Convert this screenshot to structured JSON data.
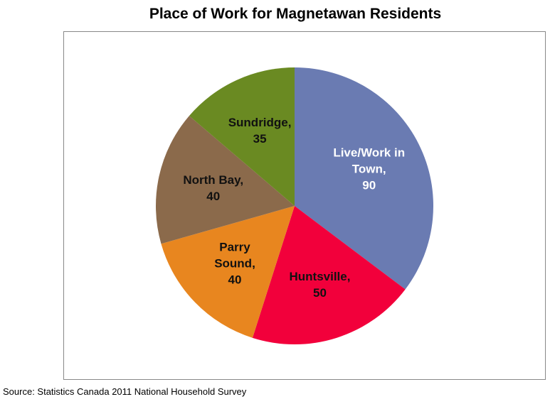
{
  "chart_data": {
    "type": "pie",
    "title": "Place of Work for Magnetawan Residents",
    "categories": [
      "Live/Work in Town,",
      "Huntsville,",
      "Parry Sound,",
      "North Bay,",
      "Sundridge,"
    ],
    "values": [
      90,
      50,
      40,
      40,
      35
    ],
    "colors": [
      "#6a7bb2",
      "#f2003b",
      "#e8861f",
      "#8b6a4b",
      "#6a8a22"
    ],
    "source": "Source: Statistics Canada 2011 National Household Survey"
  }
}
